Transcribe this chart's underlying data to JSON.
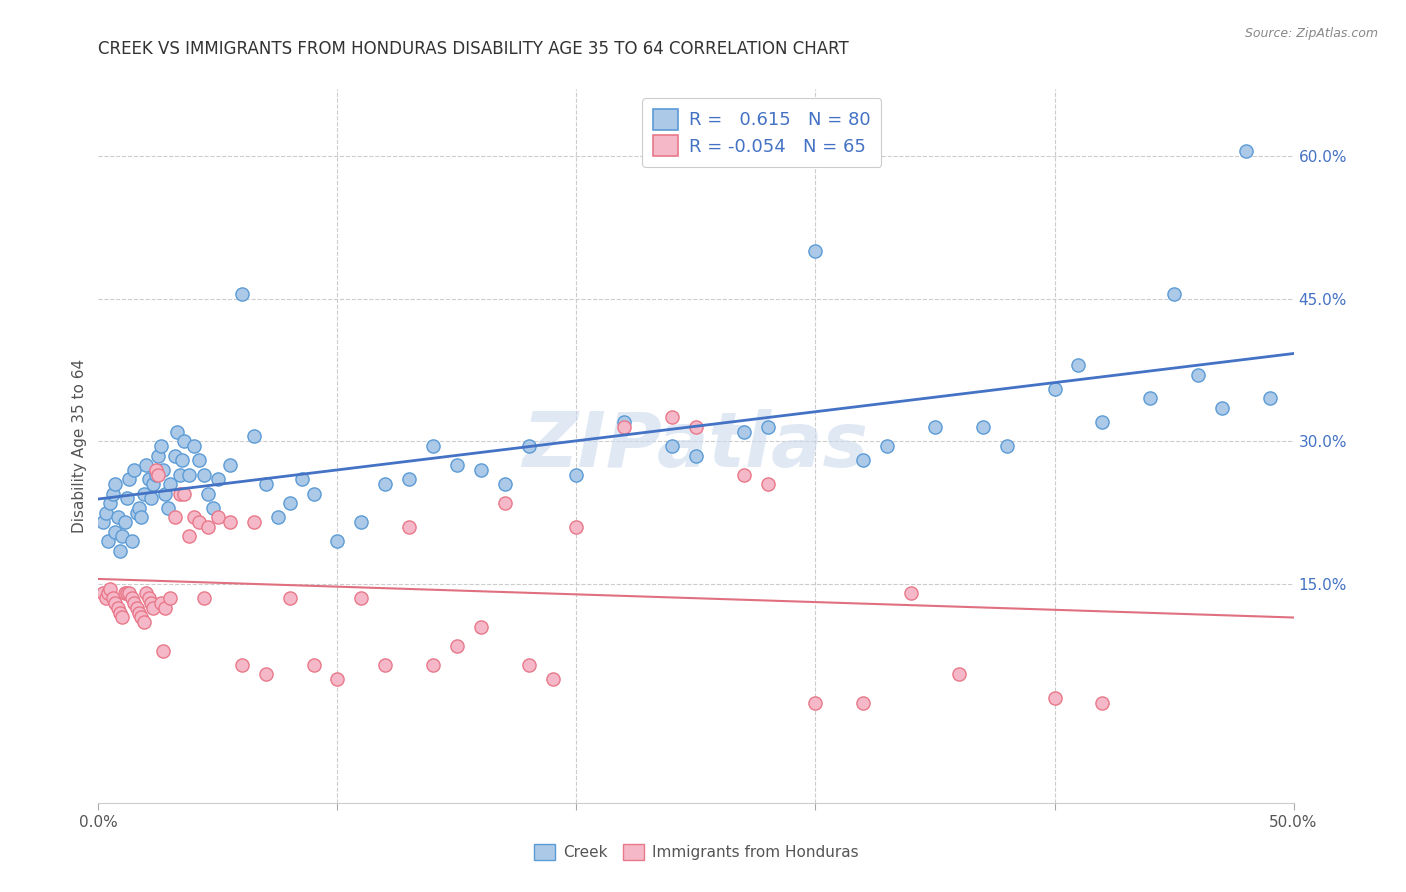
{
  "title": "CREEK VS IMMIGRANTS FROM HONDURAS DISABILITY AGE 35 TO 64 CORRELATION CHART",
  "source": "Source: ZipAtlas.com",
  "ylabel": "Disability Age 35 to 64",
  "xlim": [
    0.0,
    0.5
  ],
  "ylim": [
    -0.08,
    0.67
  ],
  "xtick_vals": [
    0.0,
    0.1,
    0.2,
    0.3,
    0.4,
    0.5
  ],
  "xtick_labels_show": [
    "0.0%",
    "",
    "",
    "",
    "",
    "50.0%"
  ],
  "ytick_vals": [
    0.15,
    0.3,
    0.45,
    0.6
  ],
  "ytick_labels": [
    "15.0%",
    "30.0%",
    "45.0%",
    "60.0%"
  ],
  "creek_color": "#adc9e8",
  "creek_edge_color": "#5b9bd5",
  "honduras_color": "#f4b8c8",
  "honduras_edge_color": "#e8788a",
  "trendline_creek_color": "#4472c4",
  "trendline_honduras_color": "#e07080",
  "watermark": "ZIPatlas",
  "creek_x": [
    0.002,
    0.003,
    0.004,
    0.005,
    0.006,
    0.007,
    0.007,
    0.008,
    0.009,
    0.01,
    0.011,
    0.012,
    0.013,
    0.014,
    0.015,
    0.016,
    0.017,
    0.018,
    0.019,
    0.02,
    0.021,
    0.022,
    0.023,
    0.024,
    0.025,
    0.026,
    0.027,
    0.028,
    0.029,
    0.03,
    0.032,
    0.033,
    0.034,
    0.035,
    0.036,
    0.038,
    0.04,
    0.042,
    0.044,
    0.046,
    0.048,
    0.05,
    0.055,
    0.06,
    0.065,
    0.07,
    0.075,
    0.08,
    0.085,
    0.09,
    0.1,
    0.11,
    0.12,
    0.13,
    0.14,
    0.15,
    0.16,
    0.17,
    0.18,
    0.2,
    0.22,
    0.24,
    0.25,
    0.27,
    0.28,
    0.3,
    0.32,
    0.33,
    0.35,
    0.37,
    0.38,
    0.4,
    0.41,
    0.42,
    0.44,
    0.45,
    0.46,
    0.47,
    0.48,
    0.49
  ],
  "creek_y": [
    0.215,
    0.225,
    0.195,
    0.235,
    0.245,
    0.205,
    0.255,
    0.22,
    0.185,
    0.2,
    0.215,
    0.24,
    0.26,
    0.195,
    0.27,
    0.225,
    0.23,
    0.22,
    0.245,
    0.275,
    0.26,
    0.24,
    0.255,
    0.265,
    0.285,
    0.295,
    0.27,
    0.245,
    0.23,
    0.255,
    0.285,
    0.31,
    0.265,
    0.28,
    0.3,
    0.265,
    0.295,
    0.28,
    0.265,
    0.245,
    0.23,
    0.26,
    0.275,
    0.455,
    0.305,
    0.255,
    0.22,
    0.235,
    0.26,
    0.245,
    0.195,
    0.215,
    0.255,
    0.26,
    0.295,
    0.275,
    0.27,
    0.255,
    0.295,
    0.265,
    0.32,
    0.295,
    0.285,
    0.31,
    0.315,
    0.5,
    0.28,
    0.295,
    0.315,
    0.315,
    0.295,
    0.355,
    0.38,
    0.32,
    0.345,
    0.455,
    0.37,
    0.335,
    0.605,
    0.345
  ],
  "honduras_x": [
    0.002,
    0.003,
    0.004,
    0.005,
    0.006,
    0.007,
    0.008,
    0.009,
    0.01,
    0.011,
    0.012,
    0.013,
    0.014,
    0.015,
    0.016,
    0.017,
    0.018,
    0.019,
    0.02,
    0.021,
    0.022,
    0.023,
    0.024,
    0.025,
    0.026,
    0.027,
    0.028,
    0.03,
    0.032,
    0.034,
    0.036,
    0.038,
    0.04,
    0.042,
    0.044,
    0.046,
    0.05,
    0.055,
    0.06,
    0.065,
    0.07,
    0.08,
    0.09,
    0.1,
    0.11,
    0.12,
    0.13,
    0.14,
    0.15,
    0.16,
    0.17,
    0.18,
    0.19,
    0.2,
    0.22,
    0.24,
    0.25,
    0.27,
    0.28,
    0.3,
    0.32,
    0.34,
    0.36,
    0.4,
    0.42
  ],
  "honduras_y": [
    0.14,
    0.135,
    0.14,
    0.145,
    0.135,
    0.13,
    0.125,
    0.12,
    0.115,
    0.14,
    0.14,
    0.14,
    0.135,
    0.13,
    0.125,
    0.12,
    0.115,
    0.11,
    0.14,
    0.135,
    0.13,
    0.125,
    0.27,
    0.265,
    0.13,
    0.08,
    0.125,
    0.135,
    0.22,
    0.245,
    0.245,
    0.2,
    0.22,
    0.215,
    0.135,
    0.21,
    0.22,
    0.215,
    0.065,
    0.215,
    0.055,
    0.135,
    0.065,
    0.05,
    0.135,
    0.065,
    0.21,
    0.065,
    0.085,
    0.105,
    0.235,
    0.065,
    0.05,
    0.21,
    0.315,
    0.325,
    0.315,
    0.265,
    0.255,
    0.025,
    0.025,
    0.14,
    0.055,
    0.03,
    0.025
  ]
}
